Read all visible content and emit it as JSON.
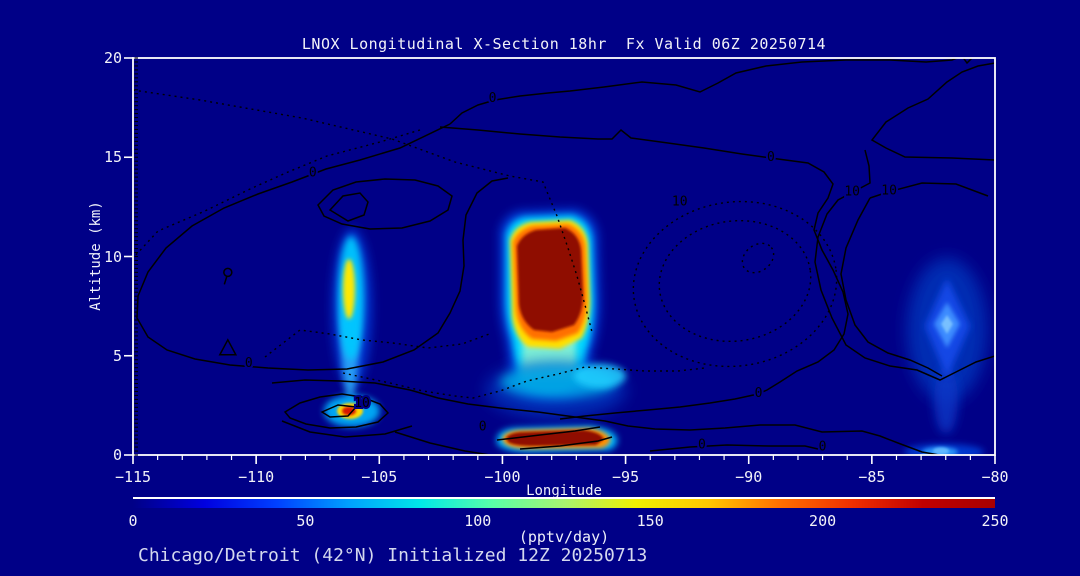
{
  "chart_data": {
    "type": "heatmap",
    "title": "LNOX Longitudinal X-Section 18hr  Fx Valid 06Z 20250714",
    "caption": "Chicago/Detroit (42°N) Initialized 12Z 20250713",
    "xlabel": "Longitude",
    "ylabel": "Altitude (km)",
    "xlim": [
      -115,
      -80
    ],
    "ylim": [
      0,
      20
    ],
    "x_ticks": [
      -115,
      -110,
      -105,
      -100,
      -95,
      -90,
      -85,
      -80
    ],
    "x_tick_labels": [
      "−115",
      "−110",
      "−105",
      "−100",
      "−95",
      "−90",
      "−85",
      "−80"
    ],
    "x_minor_step": 1,
    "y_ticks": [
      0,
      5,
      10,
      15,
      20
    ],
    "y_tick_labels": [
      "0",
      "5",
      "10",
      "15",
      "20"
    ],
    "y_minor_step": 0.2,
    "grid": false,
    "legend": "colorbar-bottom",
    "colorbar": {
      "label": "(pptv/day)",
      "range": [
        0,
        250
      ],
      "ticks": [
        0,
        50,
        100,
        150,
        200,
        250
      ],
      "tick_labels": [
        "0",
        "50",
        "100",
        "150",
        "200",
        "250"
      ],
      "gradient": [
        "#000087",
        "#0000E0",
        "#0040FF",
        "#00A0FF",
        "#00E8E8",
        "#58FFA8",
        "#A8F470",
        "#F0F000",
        "#FFC800",
        "#FF7000",
        "#F03000",
        "#C00000",
        "#A80000"
      ]
    },
    "contour_levels": [
      0,
      10
    ],
    "contour_labels": [
      {
        "text": "0",
        "lon": -100.4,
        "alt": 17.95
      },
      {
        "text": "0",
        "lon": -107.7,
        "alt": 14.2
      },
      {
        "text": "0",
        "lon": -110.3,
        "alt": 4.6
      },
      {
        "text": "0",
        "lon": -89.1,
        "alt": 15.0
      },
      {
        "text": "10",
        "lon": -92.8,
        "alt": 12.75
      },
      {
        "text": "10",
        "lon": -85.8,
        "alt": 13.25
      },
      {
        "text": "10",
        "lon": -84.3,
        "alt": 13.3
      },
      {
        "text": "10",
        "lon": -105.7,
        "alt": 2.6
      },
      {
        "text": "0",
        "lon": -100.8,
        "alt": 1.4
      },
      {
        "text": "0",
        "lon": -89.6,
        "alt": 3.1
      },
      {
        "text": "0",
        "lon": -91.9,
        "alt": 0.5
      },
      {
        "text": "0",
        "lon": -87.0,
        "alt": 0.4
      }
    ],
    "markers": [
      {
        "shape": "balloon",
        "lon": -111.15,
        "alt": 9.2
      },
      {
        "shape": "triangle",
        "lon": -111.15,
        "alt": 5.4
      }
    ],
    "features": [
      {
        "name": "main-plume",
        "lon_range": [
          -100.1,
          -96.1
        ],
        "alt_range": [
          3.0,
          12.3
        ],
        "peak_pptv_day": 250
      },
      {
        "name": "narrow-column",
        "lon_range": [
          -106.7,
          -105.4
        ],
        "alt_range": [
          3.0,
          11.0
        ],
        "peak_pptv_day": 150
      },
      {
        "name": "low-level-hotspot",
        "lon_range": [
          -106.6,
          -104.6
        ],
        "alt_range": [
          1.4,
          3.2
        ],
        "peak_pptv_day": 240
      },
      {
        "name": "boundary-layer-streak",
        "lon_range": [
          -100.0,
          -95.6
        ],
        "alt_range": [
          0.0,
          1.5
        ],
        "peak_pptv_day": 250
      },
      {
        "name": "right-column",
        "lon_range": [
          -82.5,
          -80.5
        ],
        "alt_range": [
          2.0,
          9.0
        ],
        "peak_pptv_day": 90
      },
      {
        "name": "right-surface-glow",
        "lon_range": [
          -82.8,
          -81.0
        ],
        "alt_range": [
          0.0,
          0.8
        ],
        "peak_pptv_day": 110
      }
    ]
  }
}
